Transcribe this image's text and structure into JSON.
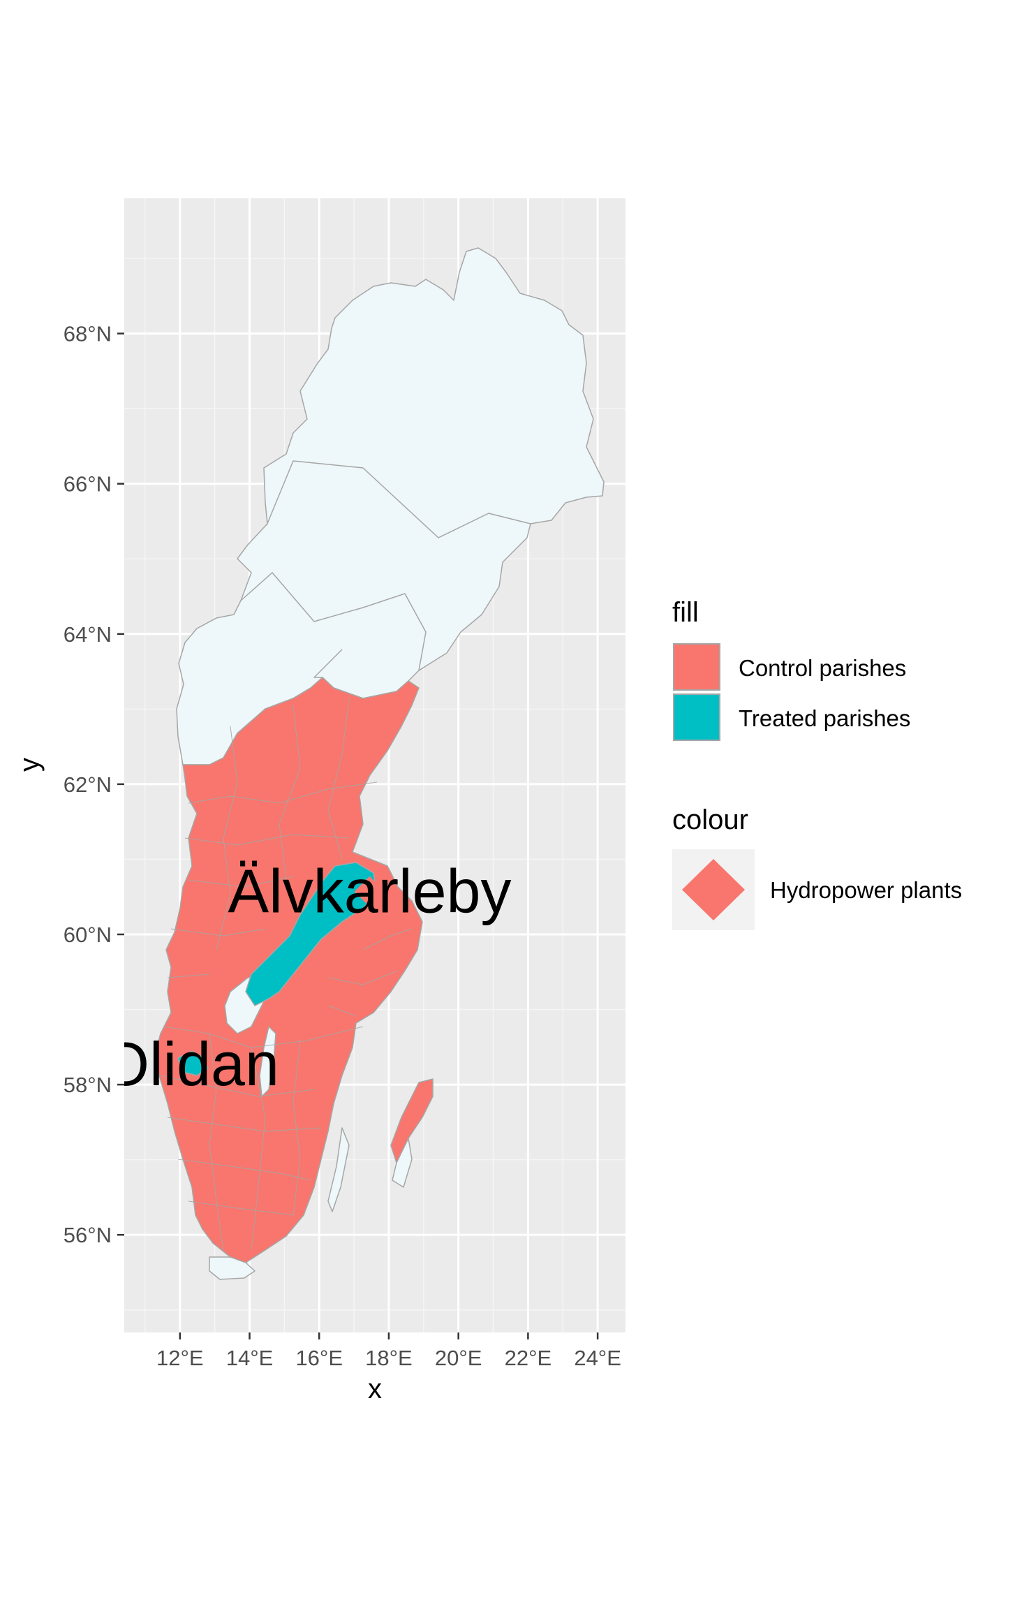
{
  "axes": {
    "xlabel": "x",
    "ylabel": "y",
    "xticks": [
      "12°E",
      "14°E",
      "16°E",
      "18°E",
      "20°E",
      "22°E",
      "24°E"
    ],
    "yticks": [
      "56°N",
      "58°N",
      "60°N",
      "62°N",
      "64°N",
      "66°N",
      "68°N"
    ],
    "xlim": [
      10.4,
      24.8
    ],
    "ylim": [
      54.7,
      69.8
    ]
  },
  "colors": {
    "panel": "#ebebeb",
    "grid": "#ffffff",
    "background_region": "#eef7f9",
    "control": "#f8766d",
    "treated": "#00bfc4",
    "border": "#a6a6a6",
    "plant": "#f8766d"
  },
  "legend": {
    "fill_title": "fill",
    "fill_items": [
      {
        "label": "Control parishes",
        "color": "#f8766d"
      },
      {
        "label": "Treated parishes",
        "color": "#00bfc4"
      }
    ],
    "colour_title": "colour",
    "colour_items": [
      {
        "label": "Hydropower plants",
        "color": "#f8766d",
        "shape": "diamond"
      }
    ]
  },
  "places": [
    {
      "name": "Älvkarleby",
      "lon": 17.45,
      "lat": 60.57
    },
    {
      "name": "Olidan",
      "lon": 12.3,
      "lat": 58.27
    }
  ],
  "plants": [
    {
      "lon": 17.45,
      "lat": 60.57
    }
  ]
}
